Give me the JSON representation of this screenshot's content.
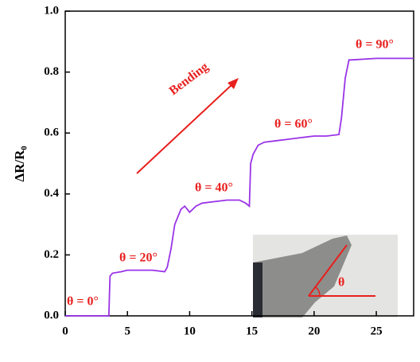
{
  "chart_data": {
    "type": "line",
    "y_label": "ΔR/R₀",
    "x": [
      0,
      3.5,
      3.6,
      3.8,
      4.5,
      5,
      6,
      7,
      8,
      8.2,
      8.5,
      8.8,
      9.3,
      9.6,
      10,
      10.5,
      11,
      12,
      13,
      14,
      14.5,
      14.8,
      14.9,
      15.1,
      15.5,
      16,
      17,
      18,
      19,
      20,
      21,
      22,
      22.2,
      22.5,
      22.8,
      23,
      25,
      28
    ],
    "values": [
      0,
      0,
      0.13,
      0.14,
      0.145,
      0.15,
      0.15,
      0.15,
      0.145,
      0.16,
      0.22,
      0.3,
      0.35,
      0.36,
      0.34,
      0.36,
      0.37,
      0.375,
      0.38,
      0.38,
      0.37,
      0.36,
      0.5,
      0.53,
      0.56,
      0.57,
      0.575,
      0.58,
      0.585,
      0.59,
      0.59,
      0.595,
      0.65,
      0.78,
      0.84,
      0.84,
      0.845,
      0.845
    ],
    "color": "#9a33e8",
    "xlim": [
      0,
      28
    ],
    "xticks": [
      0,
      5,
      10,
      15,
      20,
      25
    ],
    "ylim": [
      0,
      1
    ],
    "yticks": [
      {
        "value": 0,
        "label": "0.0"
      },
      {
        "value": 0.2,
        "label": "0.2"
      },
      {
        "value": 0.4,
        "label": "0.4"
      },
      {
        "value": 0.6,
        "label": "0.6"
      },
      {
        "value": 0.8,
        "label": "0.8"
      },
      {
        "value": 1,
        "label": "1.0"
      }
    ],
    "annotations": [
      "θ = 0°",
      "θ = 20°",
      "θ = 40°",
      "θ = 60°",
      "θ = 90°",
      "Bending"
    ],
    "inset_label": "θ"
  }
}
